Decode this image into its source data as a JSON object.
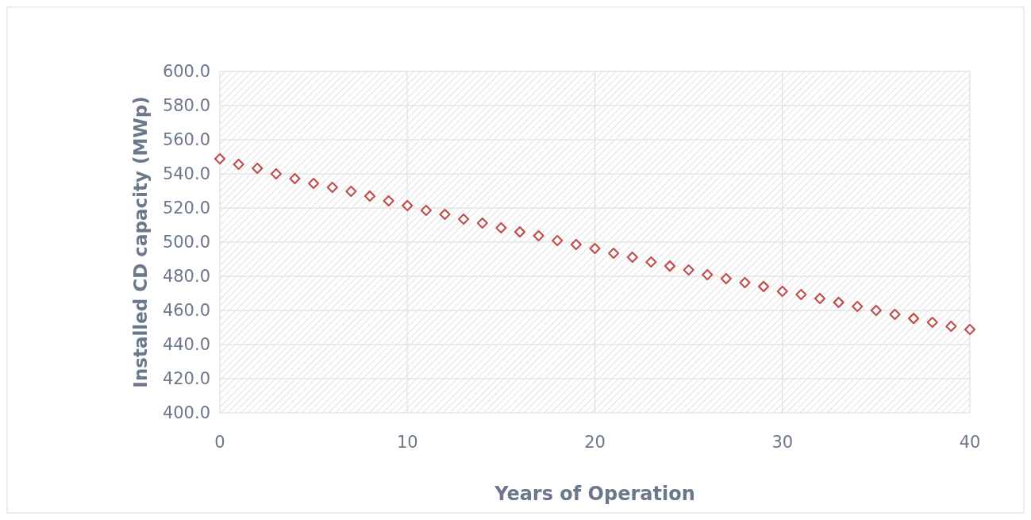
{
  "chart_data": {
    "type": "scatter",
    "xlabel": "Years of Operation",
    "ylabel": "Installed CD capacity (MWp)",
    "x": [
      0,
      1,
      2,
      3,
      4,
      5,
      6,
      7,
      8,
      9,
      10,
      11,
      12,
      13,
      14,
      15,
      16,
      17,
      18,
      19,
      20,
      21,
      22,
      23,
      24,
      25,
      26,
      27,
      28,
      29,
      30,
      31,
      32,
      33,
      34,
      35,
      36,
      37,
      38,
      39,
      40
    ],
    "series": [
      {
        "color": "#c0504d",
        "values": [
          548.8,
          545.6,
          543.3,
          540.0,
          537.2,
          534.4,
          532.1,
          529.8,
          527.0,
          524.2,
          521.4,
          518.6,
          516.3,
          513.5,
          511.2,
          508.4,
          506.0,
          503.7,
          500.9,
          498.6,
          496.3,
          493.5,
          491.2,
          488.4,
          486.0,
          483.7,
          480.9,
          478.6,
          476.3,
          474.0,
          471.2,
          469.3,
          467.0,
          464.7,
          462.3,
          460.0,
          457.7,
          455.3,
          453.0,
          450.7,
          448.8
        ]
      }
    ],
    "xlim": [
      0,
      40
    ],
    "xticks": [
      0,
      10,
      20,
      30,
      40
    ],
    "ylim": [
      400,
      600
    ],
    "yticks": [
      {
        "value": 400,
        "label": "400.0"
      },
      {
        "value": 420,
        "label": "420.0"
      },
      {
        "value": 440,
        "label": "440.0"
      },
      {
        "value": 460,
        "label": "460.0"
      },
      {
        "value": 480,
        "label": "480.0"
      },
      {
        "value": 500,
        "label": "500.0"
      },
      {
        "value": 520,
        "label": "520.0"
      },
      {
        "value": 540,
        "label": "540.0"
      },
      {
        "value": 560,
        "label": "560.0"
      },
      {
        "value": 580,
        "label": "580.0"
      },
      {
        "value": 600,
        "label": "600.0"
      }
    ],
    "grid": true,
    "marker": "diamond"
  }
}
